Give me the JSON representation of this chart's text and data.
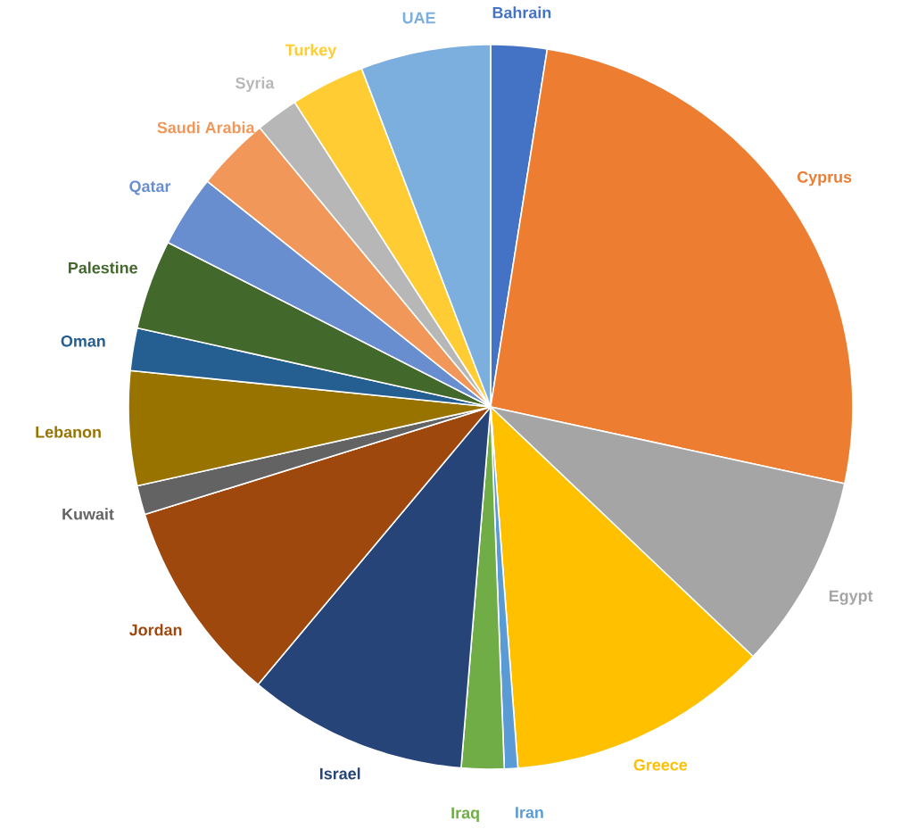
{
  "chart_data": {
    "type": "pie",
    "categories": [
      "Bahrain",
      "Cyprus",
      "Egypt",
      "Greece",
      "Iran",
      "Iraq",
      "Israel",
      "Jordan",
      "Kuwait",
      "Lebanon",
      "Oman",
      "Palestine",
      "Qatar",
      "Saudi Arabia",
      "Syria",
      "Turkey",
      "UAE"
    ],
    "values": [
      2.5,
      25.9,
      8.7,
      11.7,
      0.6,
      1.9,
      9.8,
      9.1,
      1.3,
      5.1,
      1.9,
      4.0,
      3.2,
      3.3,
      1.9,
      3.3,
      5.8
    ],
    "colors": [
      "#4472c4",
      "#ed7d31",
      "#a5a5a5",
      "#ffc000",
      "#5b9bd5",
      "#70ad47",
      "#264478",
      "#9e480e",
      "#636363",
      "#997300",
      "#255e91",
      "#43682b",
      "#698ed0",
      "#f1975a",
      "#b7b7b7",
      "#ffcd33",
      "#7cafdd"
    ]
  }
}
